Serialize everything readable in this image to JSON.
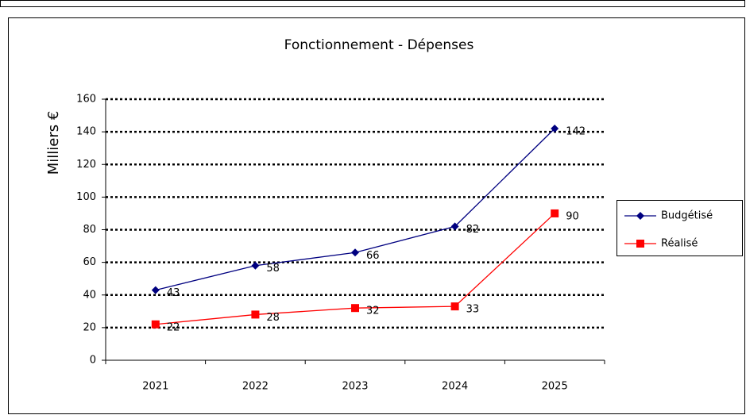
{
  "chart_data": {
    "type": "line",
    "title": "Fonctionnement - Dépenses",
    "y_label": "Milliers €",
    "categories": [
      "2021",
      "2022",
      "2023",
      "2024",
      "2025"
    ],
    "series": [
      {
        "name": "Budgétisé",
        "color": "#000080",
        "marker": "diamond",
        "values": [
          43,
          58,
          66,
          82,
          142
        ]
      },
      {
        "name": "Réalisé",
        "color": "#ff0000",
        "marker": "square",
        "values": [
          22,
          28,
          32,
          33,
          90
        ]
      }
    ],
    "ylim": [
      0,
      160
    ],
    "yticks": [
      0,
      20,
      40,
      60,
      80,
      100,
      120,
      140,
      160
    ],
    "grid": true,
    "legend": "right"
  }
}
